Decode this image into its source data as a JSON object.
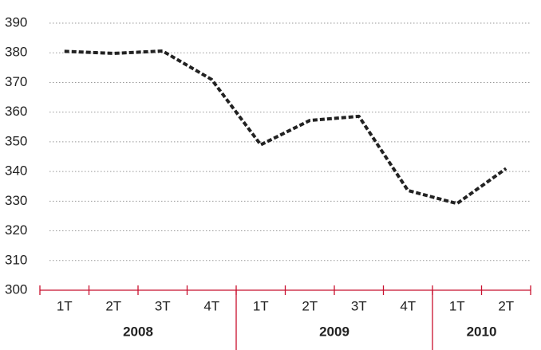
{
  "chart_data": {
    "type": "line",
    "categories": [
      "1T",
      "2T",
      "3T",
      "4T",
      "1T",
      "2T",
      "3T",
      "4T",
      "1T",
      "2T"
    ],
    "groups": [
      {
        "name": "2008",
        "span": 4
      },
      {
        "name": "2009",
        "span": 4
      },
      {
        "name": "2010",
        "span": 2
      }
    ],
    "series": [
      {
        "name": null,
        "color": "#222222",
        "values": [
          380.5,
          379.8,
          380.6,
          371,
          349,
          357.2,
          358.6,
          333.6,
          329.2,
          341
        ]
      }
    ],
    "ylim": [
      300,
      390
    ],
    "yticks": [
      300,
      310,
      320,
      330,
      340,
      350,
      360,
      370,
      380,
      390
    ],
    "grid": true
  }
}
